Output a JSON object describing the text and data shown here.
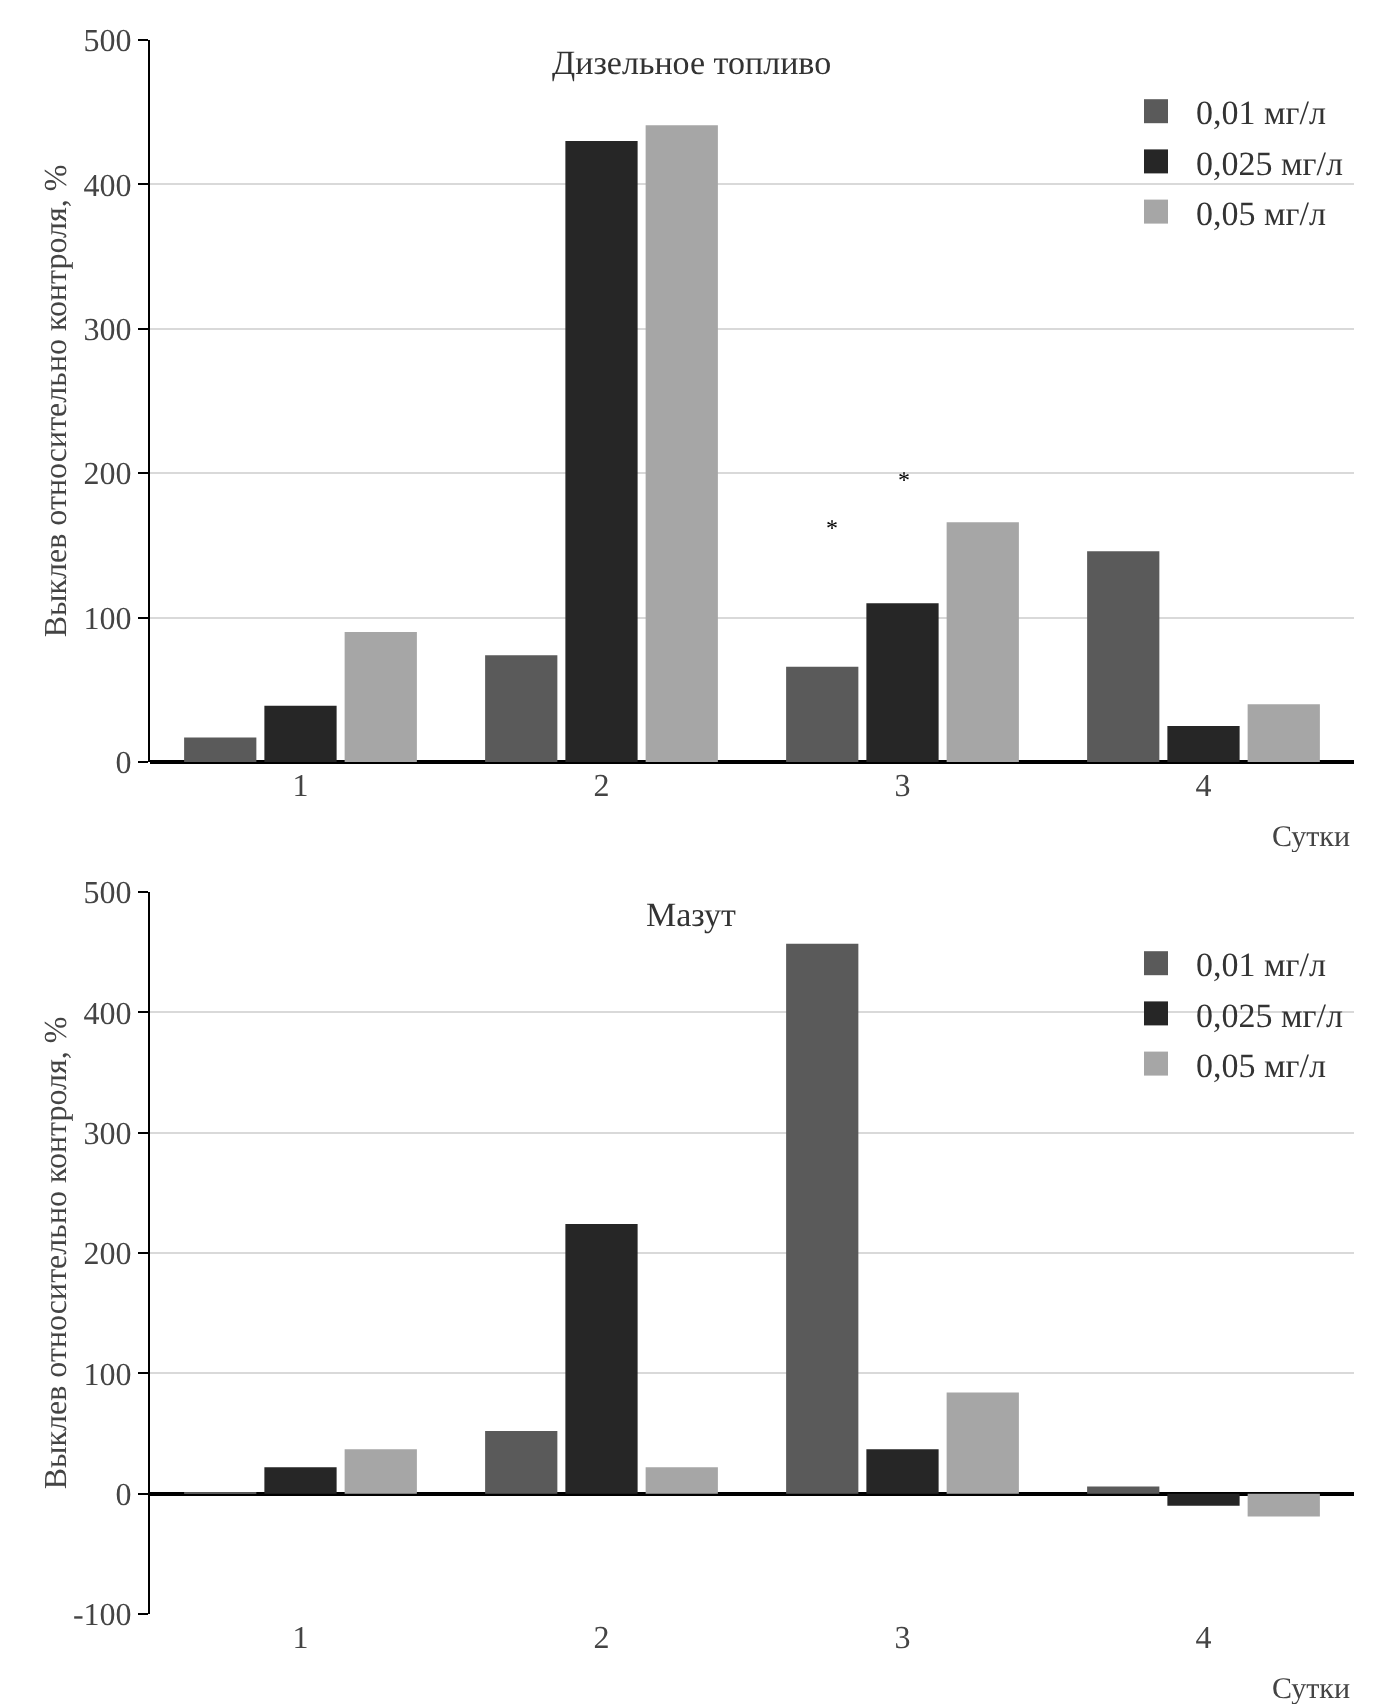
{
  "chart_data": [
    {
      "type": "bar",
      "title": "Дизельное топливо",
      "xlabel": "Сутки",
      "ylabel": "Выклев относительно контроля, %",
      "categories": [
        "1",
        "2",
        "3",
        "4"
      ],
      "series": [
        {
          "name": "0,01 мг/л",
          "color": "#5a5a5a",
          "values": [
            17,
            74,
            66,
            146
          ]
        },
        {
          "name": "0,025 мг/л",
          "color": "#262626",
          "values": [
            39,
            430,
            110,
            25
          ]
        },
        {
          "name": "0,05 мг/л",
          "color": "#a6a6a6",
          "values": [
            90,
            441,
            166,
            40
          ]
        }
      ],
      "annotations": [
        "*",
        "*"
      ],
      "ylim": [
        0,
        500
      ],
      "yticks": [
        0,
        100,
        200,
        300,
        400,
        500
      ],
      "grid": "y",
      "legend": "top right"
    },
    {
      "type": "bar",
      "title": "Мазут",
      "xlabel": "Сутки",
      "ylabel": "Выклев относительно контроля, %",
      "categories": [
        "1",
        "2",
        "3",
        "4"
      ],
      "series": [
        {
          "name": "0,01 мг/л",
          "color": "#5a5a5a",
          "values": [
            1,
            52,
            457,
            6
          ]
        },
        {
          "name": "0,025 мг/л",
          "color": "#262626",
          "values": [
            22,
            224,
            37,
            -10
          ]
        },
        {
          "name": "0,05 мг/л",
          "color": "#a6a6a6",
          "values": [
            37,
            22,
            84,
            -19
          ]
        }
      ],
      "ylim": [
        -100,
        500
      ],
      "yticks": [
        -100,
        0,
        100,
        200,
        300,
        400,
        500
      ],
      "grid": "y",
      "legend": "top right"
    }
  ]
}
